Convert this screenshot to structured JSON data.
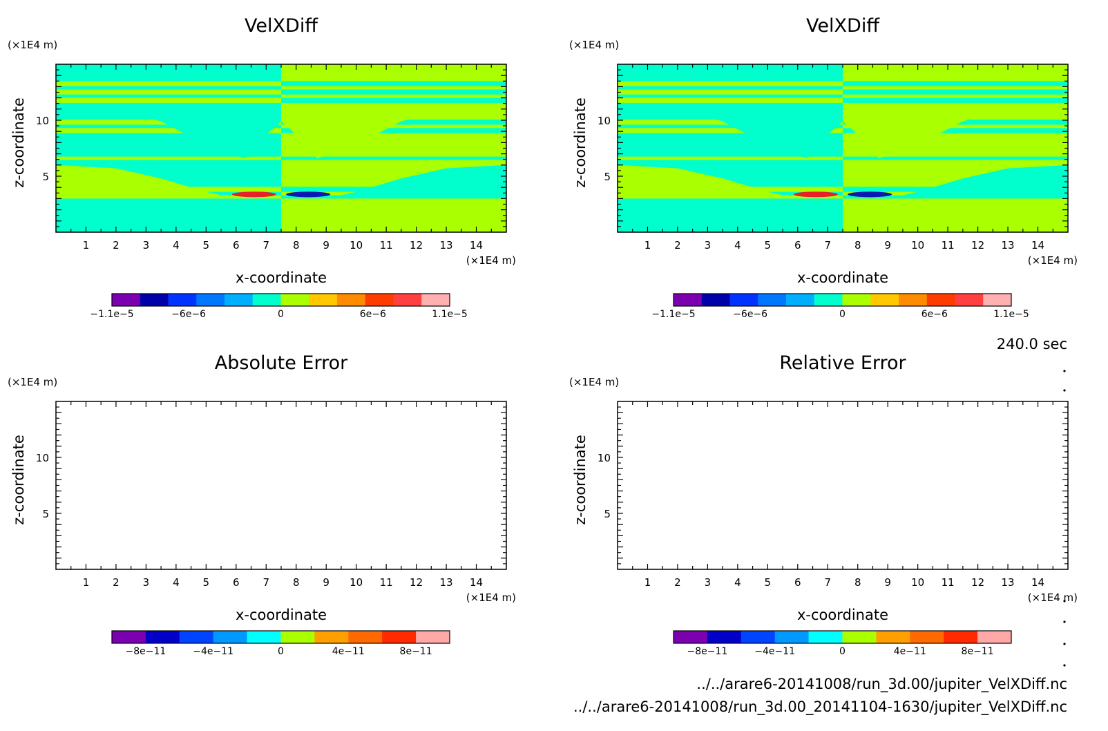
{
  "time_label": "240.0 sec",
  "files": [
    "../../arare6-20141008/run_3d.00/jupiter_VelXDiff.nc",
    "../../arare6-20141008/run_3d.00_20141104-1630/jupiter_VelXDiff.nc"
  ],
  "colors": {
    "cyan": "#00FFCC",
    "lime": "#AAFF00",
    "red": "#E8202A",
    "blue": "#0A1AB0",
    "frame": "#000000"
  },
  "chart_data": [
    {
      "type": "heatmap",
      "title": "VelXDiff",
      "xlabel": "x-coordinate",
      "ylabel": "z-coordinate",
      "x_unit": "(×1E4 m)",
      "y_unit": "(×1E4 m)",
      "xlim": [
        0,
        15
      ],
      "ylim": [
        0,
        15
      ],
      "x_ticks": [
        "1",
        "2",
        "3",
        "4",
        "5",
        "6",
        "7",
        "8",
        "9",
        "10",
        "11",
        "12",
        "13",
        "14"
      ],
      "y_ticks": [
        "5",
        "10"
      ],
      "field": "symmetric",
      "colorbar": {
        "range": [
          -1.1e-05,
          1.1e-05
        ],
        "colors": [
          "#7A00B0",
          "#0000A8",
          "#0033FF",
          "#0077FF",
          "#00B0FF",
          "#00FFCC",
          "#AAFF00",
          "#FFC800",
          "#FF8C00",
          "#FF3C00",
          "#FF4040",
          "#FFB0B0"
        ],
        "labels": [
          "−1.1e−5",
          "−6e−6",
          "0",
          "6e−6",
          "1.1e−5"
        ]
      }
    },
    {
      "type": "heatmap",
      "title": "VelXDiff",
      "xlabel": "x-coordinate",
      "ylabel": "z-coordinate",
      "x_unit": "(×1E4 m)",
      "y_unit": "(×1E4 m)",
      "xlim": [
        0,
        15
      ],
      "ylim": [
        0,
        15
      ],
      "x_ticks": [
        "1",
        "2",
        "3",
        "4",
        "5",
        "6",
        "7",
        "8",
        "9",
        "10",
        "11",
        "12",
        "13",
        "14"
      ],
      "y_ticks": [
        "5",
        "10"
      ],
      "field": "symmetric",
      "colorbar": {
        "range": [
          -1.1e-05,
          1.1e-05
        ],
        "colors": [
          "#7A00B0",
          "#0000A8",
          "#0033FF",
          "#0077FF",
          "#00B0FF",
          "#00FFCC",
          "#AAFF00",
          "#FFC800",
          "#FF8C00",
          "#FF3C00",
          "#FF4040",
          "#FFB0B0"
        ],
        "labels": [
          "−1.1e−5",
          "−6e−6",
          "0",
          "6e−6",
          "1.1e−5"
        ]
      }
    },
    {
      "type": "heatmap",
      "title": "Absolute Error",
      "xlabel": "x-coordinate",
      "ylabel": "z-coordinate",
      "x_unit": "(×1E4 m)",
      "y_unit": "(×1E4 m)",
      "xlim": [
        0,
        15
      ],
      "ylim": [
        0,
        15
      ],
      "x_ticks": [
        "1",
        "2",
        "3",
        "4",
        "5",
        "6",
        "7",
        "8",
        "9",
        "10",
        "11",
        "12",
        "13",
        "14"
      ],
      "y_ticks": [
        "5",
        "10"
      ],
      "field": "empty",
      "colorbar": {
        "range": [
          -1e-10,
          1e-10
        ],
        "colors": [
          "#7A00B0",
          "#0000C8",
          "#0044FF",
          "#0099FF",
          "#00FFFF",
          "#AAFF00",
          "#FFA000",
          "#FF6A00",
          "#FF2A00",
          "#FFA8A8"
        ],
        "labels": [
          "−8e−11",
          "−4e−11",
          "0",
          "4e−11",
          "8e−11"
        ]
      }
    },
    {
      "type": "heatmap",
      "title": "Relative Error",
      "xlabel": "x-coordinate",
      "ylabel": "z-coordinate",
      "x_unit": "(×1E4 m)",
      "y_unit": "(×1E4 m)",
      "xlim": [
        0,
        15
      ],
      "ylim": [
        0,
        15
      ],
      "x_ticks": [
        "1",
        "2",
        "3",
        "4",
        "5",
        "6",
        "7",
        "8",
        "9",
        "10",
        "11",
        "12",
        "13",
        "14"
      ],
      "y_ticks": [
        "5",
        "10"
      ],
      "field": "empty",
      "colorbar": {
        "range": [
          -1e-10,
          1e-10
        ],
        "colors": [
          "#7A00B0",
          "#0000C8",
          "#0044FF",
          "#0099FF",
          "#00FFFF",
          "#AAFF00",
          "#FFA000",
          "#FF6A00",
          "#FF2A00",
          "#FFA8A8"
        ],
        "labels": [
          "−8e−11",
          "−4e−11",
          "0",
          "4e−11",
          "8e−11"
        ]
      }
    }
  ]
}
